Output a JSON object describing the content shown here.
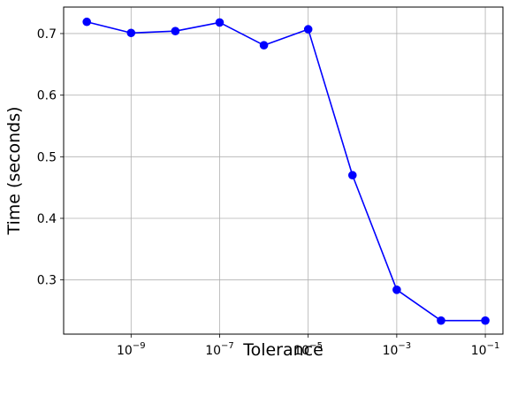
{
  "chart_data": {
    "type": "line",
    "title": "",
    "xlabel": "Tolerance",
    "ylabel": "Time (seconds)",
    "x_scale": "log",
    "grid": true,
    "legend": "none",
    "xlim": [
      3e-11,
      0.25
    ],
    "ylim": [
      0.212,
      0.743
    ],
    "x_ticks": [
      {
        "value": 1e-09,
        "base": "10",
        "exp": "−9"
      },
      {
        "value": 1e-07,
        "base": "10",
        "exp": "−7"
      },
      {
        "value": 1e-05,
        "base": "10",
        "exp": "−5"
      },
      {
        "value": 0.001,
        "base": "10",
        "exp": "−3"
      },
      {
        "value": 0.1,
        "base": "10",
        "exp": "−1"
      }
    ],
    "y_ticks": [
      {
        "value": 0.3,
        "label": "0.3"
      },
      {
        "value": 0.4,
        "label": "0.4"
      },
      {
        "value": 0.5,
        "label": "0.5"
      },
      {
        "value": 0.6,
        "label": "0.6"
      },
      {
        "value": 0.7,
        "label": "0.7"
      }
    ],
    "series": [
      {
        "color": "#0000ff",
        "marker": "circle",
        "x": [
          1e-10,
          1e-09,
          1e-08,
          1e-07,
          1e-06,
          1e-05,
          0.0001,
          0.001,
          0.01,
          0.1
        ],
        "y": [
          0.719,
          0.701,
          0.704,
          0.718,
          0.681,
          0.707,
          0.47,
          0.284,
          0.234,
          0.234
        ]
      }
    ]
  }
}
